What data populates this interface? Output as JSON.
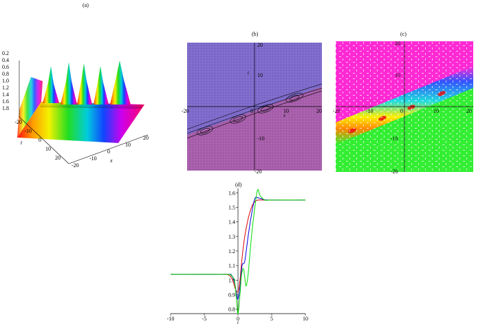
{
  "panels": {
    "a": {
      "label": "(a)",
      "z_ticks": [
        "0.2",
        "0.4",
        "0.6",
        "0.8",
        "1.0",
        "1.2",
        "1.4",
        "1.6",
        "1.8"
      ],
      "t_ticks": [
        "-20",
        "-10",
        "0",
        "10",
        "20"
      ],
      "x_ticks": [
        "-20",
        "-10",
        "0",
        "10",
        "20"
      ],
      "t_axis_label": "t",
      "x_axis_label": "x"
    },
    "b": {
      "label": "(b)",
      "y_ticks": [
        "20",
        "10",
        "-10",
        "-20"
      ],
      "x_ticks": [
        "-20",
        "0",
        "10",
        "20"
      ],
      "y_axis_label": "t",
      "x_axis_label": "x",
      "colors": {
        "upper": "#7a66c8",
        "lower": "#a45aa8",
        "contour": "#000000"
      }
    },
    "c": {
      "label": "(c)",
      "y_ticks": [
        "20",
        "10",
        "-10",
        "-20"
      ],
      "x_ticks": [
        "-20",
        "-10",
        "0",
        "10",
        "20"
      ],
      "colors": {
        "upper": "#ff2ad4",
        "lower": "#33ee33"
      }
    }
  },
  "chart_data": {
    "type": "line",
    "title": "(d)",
    "xlabel": "t",
    "ylabel": "",
    "xlim": [
      -10,
      10
    ],
    "ylim": [
      0.77,
      1.63
    ],
    "xticks": [
      -10,
      -5,
      0,
      5,
      10
    ],
    "yticks": [
      0.8,
      0.9,
      1.0,
      1.1,
      1.2,
      1.3,
      1.4,
      1.5,
      1.6
    ],
    "grid": false,
    "legend": "none",
    "series": [
      {
        "color": "#dd0000",
        "x": [
          -10,
          -3,
          -1.5,
          -0.8,
          -0.4,
          0,
          0.3,
          0.6,
          1,
          1.5,
          2,
          2.5,
          3,
          4,
          5,
          10
        ],
        "values": [
          1.04,
          1.04,
          1.038,
          1.0,
          0.94,
          0.92,
          1.0,
          1.15,
          1.3,
          1.42,
          1.5,
          1.54,
          1.55,
          1.55,
          1.55,
          1.55
        ]
      },
      {
        "color": "#0000dd",
        "x": [
          -10,
          -2,
          -1,
          -0.5,
          -0.2,
          0,
          0.3,
          0.6,
          1,
          1.5,
          2,
          2.5,
          3,
          4,
          5,
          10
        ],
        "values": [
          1.04,
          1.04,
          1.035,
          0.98,
          0.9,
          0.87,
          0.95,
          1.1,
          1.13,
          1.3,
          1.45,
          1.56,
          1.565,
          1.552,
          1.55,
          1.55
        ]
      },
      {
        "color": "#00dd00",
        "x": [
          -10,
          -2,
          -1,
          -0.5,
          -0.2,
          0,
          0.3,
          0.5,
          0.8,
          1.0,
          1.2,
          1.5,
          2,
          2.5,
          2.9,
          3.3,
          4,
          5,
          10
        ],
        "values": [
          1.04,
          1.04,
          1.03,
          0.99,
          0.85,
          0.77,
          0.9,
          1.03,
          1.08,
          1.02,
          0.96,
          1.04,
          1.3,
          1.5,
          1.62,
          1.58,
          1.55,
          1.55,
          1.55
        ]
      }
    ]
  }
}
